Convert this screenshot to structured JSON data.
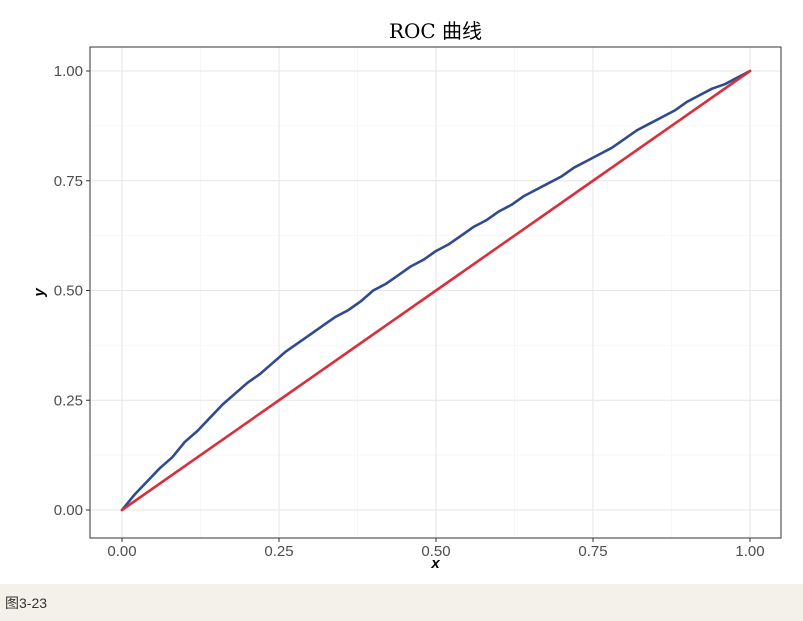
{
  "chart_data": {
    "type": "line",
    "title": "ROC 曲线",
    "xlabel": "x",
    "ylabel": "y",
    "xlim": [
      0,
      1
    ],
    "ylim": [
      0,
      1
    ],
    "grid": true,
    "legend": "none",
    "x_ticks": [
      "0.00",
      "0.25",
      "0.50",
      "0.75",
      "1.00"
    ],
    "y_ticks": [
      "0.00",
      "0.25",
      "0.50",
      "0.75",
      "1.00"
    ],
    "series": [
      {
        "color": "#2f4a8f",
        "x": [
          0,
          0.02,
          0.04,
          0.06,
          0.08,
          0.1,
          0.12,
          0.14,
          0.16,
          0.18,
          0.2,
          0.22,
          0.24,
          0.26,
          0.28,
          0.3,
          0.32,
          0.34,
          0.36,
          0.38,
          0.4,
          0.42,
          0.44,
          0.46,
          0.48,
          0.5,
          0.52,
          0.54,
          0.56,
          0.58,
          0.6,
          0.62,
          0.64,
          0.66,
          0.68,
          0.7,
          0.72,
          0.74,
          0.76,
          0.78,
          0.8,
          0.82,
          0.84,
          0.86,
          0.88,
          0.9,
          0.92,
          0.94,
          0.96,
          0.98,
          1.0
        ],
        "y": [
          0,
          0.035,
          0.065,
          0.095,
          0.12,
          0.155,
          0.18,
          0.21,
          0.24,
          0.265,
          0.29,
          0.31,
          0.335,
          0.36,
          0.38,
          0.4,
          0.42,
          0.44,
          0.455,
          0.475,
          0.5,
          0.515,
          0.535,
          0.555,
          0.57,
          0.59,
          0.605,
          0.625,
          0.645,
          0.66,
          0.68,
          0.695,
          0.715,
          0.73,
          0.745,
          0.76,
          0.78,
          0.795,
          0.81,
          0.825,
          0.845,
          0.865,
          0.88,
          0.895,
          0.91,
          0.93,
          0.945,
          0.96,
          0.97,
          0.985,
          1.0
        ]
      },
      {
        "color": "#d8303b",
        "x": [
          0,
          0.25,
          0.5,
          0.75,
          1.0
        ],
        "y": [
          0,
          0.25,
          0.5,
          0.75,
          1.0
        ]
      }
    ]
  },
  "caption": "图3-23"
}
